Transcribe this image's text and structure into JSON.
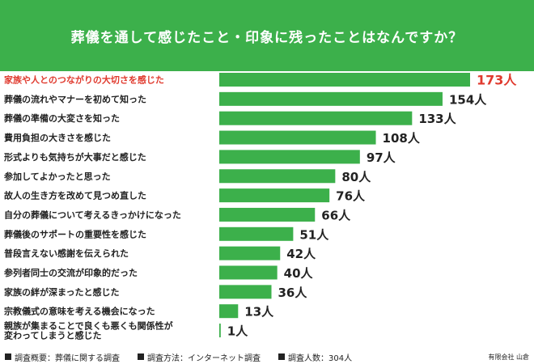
{
  "header": {
    "title": "葬儀を通して感じたこと・印象に残ったことはなんですか？"
  },
  "colors": {
    "bar": "#3cb04b",
    "highlight": "#e03a2e",
    "header_bg": "#3cb04b"
  },
  "chart_data": {
    "type": "bar",
    "orientation": "horizontal",
    "title": "葬儀を通して感じたこと・印象に残ったことはなんですか？",
    "unit": "人",
    "highlight_index": 0,
    "categories": [
      "家族や人とのつながりの大切さを感じた",
      "葬儀の流れやマナーを初めて知った",
      "葬儀の準備の大変さを知った",
      "費用負担の大きさを感じた",
      "形式よりも気持ちが大事だと感じた",
      "参加してよかったと思った",
      "故人の生き方を改めて見つめ直した",
      "自分の葬儀について考えるきっかけになった",
      "葬儀後のサポートの重要性を感じた",
      "普段言えない感謝を伝えられた",
      "参列者同士の交流が印象的だった",
      "家族の絆が深まったと感じた",
      "宗教儀式の意味を考える機会になった",
      [
        "親族が集まることで良くも悪くも関係性が",
        "変わってしまうと感じた"
      ]
    ],
    "values": [
      173,
      154,
      133,
      108,
      97,
      80,
      76,
      66,
      51,
      42,
      40,
      36,
      13,
      1
    ],
    "value_labels": [
      "173人",
      "154人",
      "133人",
      "108人",
      "97人",
      "80人",
      "76人",
      "66人",
      "51人",
      "42人",
      "40人",
      "36人",
      "13人",
      "1人"
    ]
  },
  "footer": {
    "items": [
      "調査概要：葬儀に関する調査",
      "調査方法：インターネット調査",
      "調査人数：304人"
    ],
    "credit": "有限会社 山倉"
  }
}
